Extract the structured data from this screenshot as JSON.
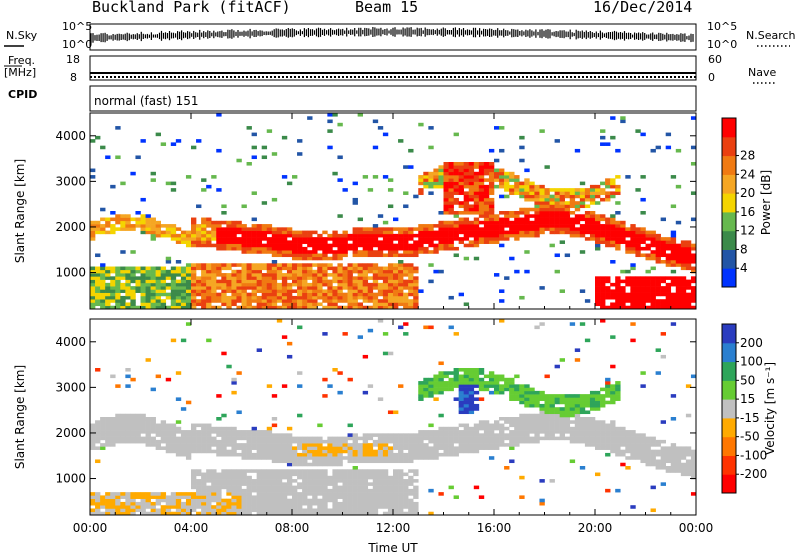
{
  "header": {
    "station": "Buckland Park (fitACF)",
    "beam": "Beam 15",
    "date": "16/Dec/2014"
  },
  "side_labels": {
    "nsky": "N.Sky",
    "nsearch": "N.Search",
    "freq": "Freq.",
    "freq_unit": "[MHz]",
    "nave": "Nave",
    "cpid": "CPID"
  },
  "noise_panel": {
    "left_ticks": [
      "10^5",
      "10^0"
    ],
    "right_ticks": [
      "10^5",
      "10^0"
    ]
  },
  "freq_panel": {
    "left_ticks": [
      "18",
      "8"
    ],
    "right_ticks": [
      "60",
      "0"
    ]
  },
  "cpid_text": "normal (fast) 151",
  "colors": {
    "power": [
      "#0033ff",
      "#2255a6",
      "#3b8a4a",
      "#66b84e",
      "#f4d400",
      "#f5a623",
      "#f07a12",
      "#ea4010",
      "#ff0000"
    ],
    "velocity": [
      "#2a3cbf",
      "#2a7fd0",
      "#2ea55a",
      "#66cc33",
      "#c0c0c0",
      "#ffaa00",
      "#ff7700",
      "#ff3300",
      "#ff0000"
    ]
  },
  "chart_data": [
    {
      "type": "heatmap",
      "quantity": "Power",
      "xlabel": "Time UT",
      "ylabel": "Slant Range [km]",
      "x_ticks": [
        "00:00",
        "04:00",
        "08:00",
        "12:00",
        "16:00",
        "20:00",
        "00:00"
      ],
      "y_ticks": [
        1000,
        2000,
        3000,
        4000
      ],
      "ylim": [
        200,
        4500
      ],
      "xlim_hours": [
        0,
        24
      ],
      "colorbar": {
        "label": "Power [dB]",
        "ticks": [
          4,
          8,
          12,
          16,
          20,
          24,
          28
        ]
      }
    },
    {
      "type": "heatmap",
      "quantity": "Velocity",
      "xlabel": "Time UT",
      "ylabel": "Slant Range [km]",
      "x_ticks": [
        "00:00",
        "04:00",
        "08:00",
        "12:00",
        "16:00",
        "20:00",
        "00:00"
      ],
      "y_ticks": [
        1000,
        2000,
        3000,
        4000
      ],
      "ylim": [
        200,
        4500
      ],
      "xlim_hours": [
        0,
        24
      ],
      "colorbar": {
        "label": "Velocity [m s⁻¹]",
        "ticks": [
          200,
          100,
          50,
          15,
          -15,
          -50,
          -100,
          -200
        ]
      }
    }
  ]
}
